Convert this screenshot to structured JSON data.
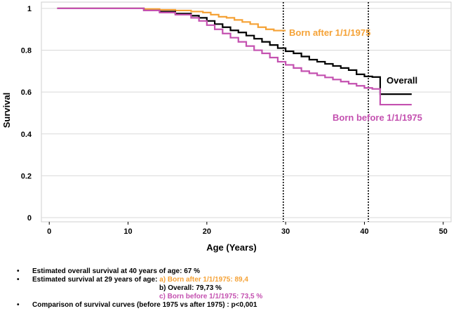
{
  "chart_data": {
    "type": "line",
    "title": "",
    "xlabel": "Age (Years)",
    "ylabel": "Survival",
    "xlim": [
      -1,
      51
    ],
    "ylim": [
      -0.02,
      1.03
    ],
    "xticks": [
      0,
      10,
      20,
      30,
      40,
      50
    ],
    "yticks": [
      0,
      0.2,
      0.4,
      0.6,
      0.8,
      1
    ],
    "ytick_labels": [
      "0",
      "0.2",
      "0.4",
      "0.6",
      "0.8",
      "1"
    ],
    "series": [
      {
        "name": "Born after 1/1/1975",
        "label": "Born after 1/1/1975",
        "color": "#f5a236",
        "x": [
          1,
          10,
          12,
          14,
          16,
          18,
          19.5,
          20.5,
          21.5,
          22.5,
          23.5,
          24.5,
          25.5,
          26.5,
          27.5,
          28.5,
          30
        ],
        "y": [
          1,
          1,
          0.997,
          0.993,
          0.99,
          0.985,
          0.98,
          0.97,
          0.96,
          0.955,
          0.945,
          0.935,
          0.925,
          0.91,
          0.9,
          0.894,
          0.894
        ]
      },
      {
        "name": "Overall",
        "label": "Overall",
        "color": "#000000",
        "x": [
          1,
          10,
          12,
          14,
          16,
          18,
          19,
          20,
          21,
          22,
          23,
          24,
          25,
          26,
          27,
          28,
          29,
          30,
          31,
          32,
          33,
          34,
          35,
          36,
          37,
          38,
          39,
          40,
          41,
          42,
          46
        ],
        "y": [
          1,
          1,
          0.99,
          0.985,
          0.975,
          0.965,
          0.955,
          0.94,
          0.925,
          0.91,
          0.895,
          0.885,
          0.87,
          0.855,
          0.84,
          0.825,
          0.81,
          0.795,
          0.785,
          0.77,
          0.755,
          0.745,
          0.735,
          0.725,
          0.715,
          0.705,
          0.685,
          0.675,
          0.672,
          0.59,
          0.59
        ]
      },
      {
        "name": "Born before 1/1/1975",
        "label": "Born before 1/1/1975",
        "color": "#c451b0",
        "x": [
          1,
          10,
          12,
          14,
          16,
          18,
          19,
          20,
          21,
          22,
          23,
          24,
          25,
          26,
          27,
          28,
          29,
          30,
          31,
          32,
          33,
          34,
          35,
          36,
          37,
          38,
          39,
          40,
          41,
          42,
          46
        ],
        "y": [
          1,
          1,
          0.99,
          0.98,
          0.97,
          0.955,
          0.94,
          0.92,
          0.9,
          0.88,
          0.86,
          0.84,
          0.82,
          0.8,
          0.785,
          0.765,
          0.745,
          0.73,
          0.715,
          0.7,
          0.69,
          0.68,
          0.67,
          0.66,
          0.65,
          0.64,
          0.63,
          0.62,
          0.615,
          0.54,
          0.54
        ]
      }
    ],
    "vlines": [
      29.7,
      40.5
    ],
    "annotations": [
      "Born after 1/1/1975",
      "Overall",
      "Born before 1/1/1975"
    ]
  },
  "notes": {
    "bullet": "•",
    "line1": "Estimated overall survival at 40 years of age: 67 %",
    "line2_prefix": "Estimated survival at 29 years of age: ",
    "line2_a": "a) Born  after   1/1/1975:  89,4",
    "line3_b": "b) Overall: 79,73 %",
    "line4_c": "c) Born before 1/1/1975:  73,5 %",
    "line5": "Comparison of survival curves (before 1975 vs after 1975) : p<0,001"
  }
}
